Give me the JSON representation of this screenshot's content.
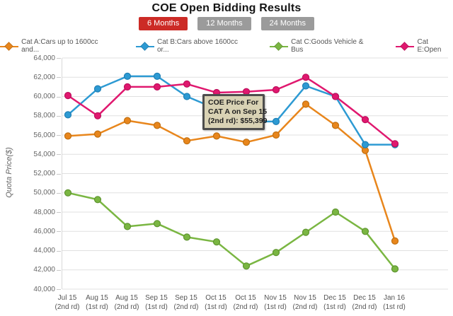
{
  "header": {
    "title": "COE Open Bidding Results",
    "tabs": [
      {
        "label": "6 Months",
        "active": true
      },
      {
        "label": "12 Months",
        "active": false
      },
      {
        "label": "24 Months",
        "active": false
      }
    ],
    "active_tab_color": "#cc2b26",
    "inactive_tab_color": "#9b9b9b"
  },
  "tooltip": {
    "lines": [
      "COE Price For",
      "CAT A on Sep 15",
      "(2nd rd): $55,399"
    ],
    "background": "#d9d2b4",
    "border_color": "#4d4d4d"
  },
  "chart_data": {
    "type": "line",
    "title": "COE Open Bidding Results",
    "xlabel": "",
    "ylabel": "Quota Price($)",
    "ylim": [
      40000,
      64000
    ],
    "ytick_step": 2000,
    "grid": true,
    "legend_position": "top",
    "categories": [
      {
        "month": "Jul 15",
        "round": "(2nd rd)"
      },
      {
        "month": "Aug 15",
        "round": "(1st rd)"
      },
      {
        "month": "Aug 15",
        "round": "(2nd rd)"
      },
      {
        "month": "Sep 15",
        "round": "(1st rd)"
      },
      {
        "month": "Sep 15",
        "round": "(2nd rd)"
      },
      {
        "month": "Oct 15",
        "round": "(1st rd)"
      },
      {
        "month": "Oct 15",
        "round": "(2nd rd)"
      },
      {
        "month": "Nov 15",
        "round": "(1st rd)"
      },
      {
        "month": "Nov 15",
        "round": "(2nd rd)"
      },
      {
        "month": "Dec 15",
        "round": "(1st rd)"
      },
      {
        "month": "Dec 15",
        "round": "(2nd rd)"
      },
      {
        "month": "Jan 16",
        "round": "(1st rd)"
      }
    ],
    "series": [
      {
        "name": "Cat A:Cars up to 1600cc and...",
        "color": "#e8861c",
        "edge": "#c06f10",
        "values": [
          55900,
          56100,
          57500,
          57000,
          55399,
          55900,
          55250,
          56000,
          59200,
          57000,
          54400,
          45000
        ]
      },
      {
        "name": "Cat B:Cars above 1600cc or...",
        "color": "#2d9ad3",
        "edge": "#1f7fb5",
        "values": [
          58100,
          60800,
          62100,
          62100,
          60000,
          58700,
          57400,
          57400,
          61100,
          60000,
          55000,
          55000
        ]
      },
      {
        "name": "Cat C:Goods Vehicle & Bus",
        "color": "#7ab642",
        "edge": "#5e9430",
        "values": [
          50000,
          49300,
          46500,
          46800,
          45400,
          44900,
          42400,
          43800,
          45900,
          48000,
          46000,
          42100
        ]
      },
      {
        "name": "Cat E:Open",
        "color": "#e0186f",
        "edge": "#bc0e5b",
        "values": [
          60100,
          58000,
          61000,
          61000,
          61300,
          60400,
          60500,
          60700,
          62000,
          60000,
          57600,
          55100
        ]
      }
    ],
    "annotation": "COE Price For CAT A on Sep 15 (2nd rd): $55,399"
  }
}
